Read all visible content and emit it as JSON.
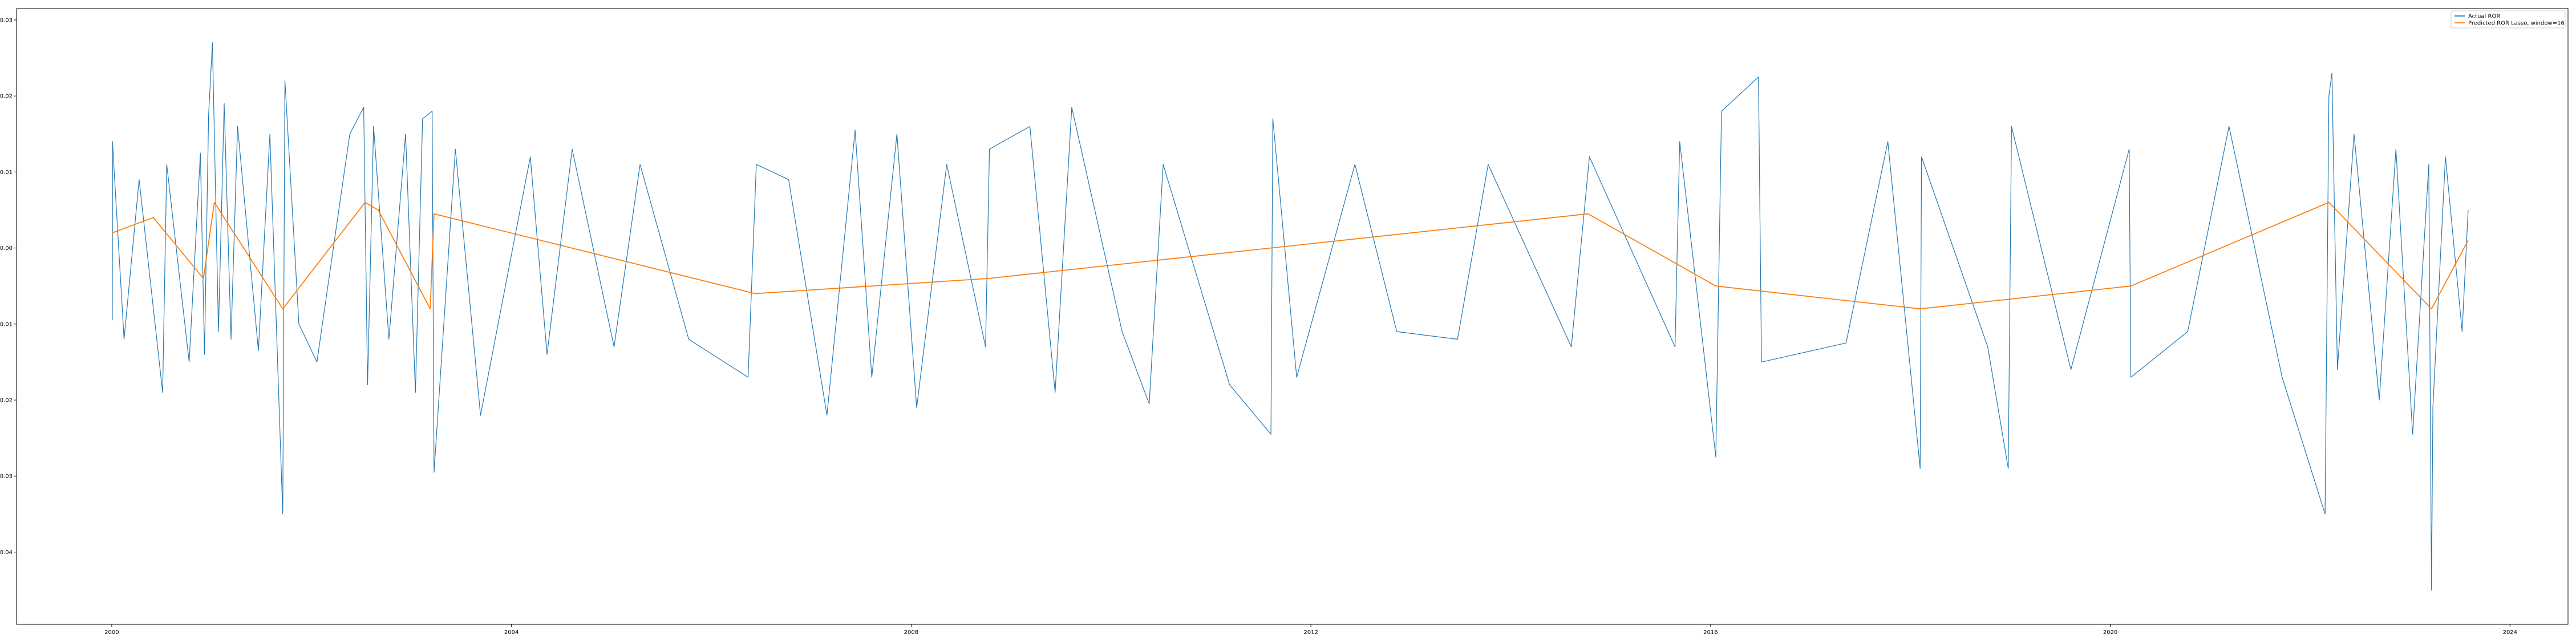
{
  "chart_data": {
    "type": "line",
    "title": "",
    "xlabel": "",
    "ylabel": "",
    "x_range": [
      "1999-01-18",
      "2024-07-31"
    ],
    "ylim": [
      -0.0495,
      0.0315
    ],
    "x_ticks": [
      {
        "date": "2000-01-01",
        "label": "2000"
      },
      {
        "date": "2004-01-01",
        "label": "2004"
      },
      {
        "date": "2008-01-01",
        "label": "2008"
      },
      {
        "date": "2012-01-01",
        "label": "2012"
      },
      {
        "date": "2016-01-01",
        "label": "2016"
      },
      {
        "date": "2020-01-01",
        "label": "2020"
      },
      {
        "date": "2024-01-01",
        "label": "2024"
      }
    ],
    "y_ticks": [
      {
        "value": 0.03,
        "label": "0.03"
      },
      {
        "value": 0.02,
        "label": "0.02"
      },
      {
        "value": 0.01,
        "label": "0.01"
      },
      {
        "value": 0.0,
        "label": "0.00"
      },
      {
        "value": -0.01,
        "label": "-0.01"
      },
      {
        "value": -0.02,
        "label": "-0.02"
      },
      {
        "value": -0.03,
        "label": "-0.03"
      },
      {
        "value": -0.04,
        "label": "-0.04"
      }
    ],
    "grid": false,
    "legend_position": "top-right",
    "series": [
      {
        "name": "Actual ROR",
        "color": "#1f77b4",
        "values": [
          {
            "x": "2000-01-03",
            "y": -0.0095
          },
          {
            "x": "2000-01-04",
            "y": 0.014
          },
          {
            "x": "2000-01-10",
            "y": 0.01
          },
          {
            "x": "2000-02-15",
            "y": -0.012
          },
          {
            "x": "2000-04-10",
            "y": 0.009
          },
          {
            "x": "2000-07-05",
            "y": -0.019
          },
          {
            "x": "2000-07-20",
            "y": 0.011
          },
          {
            "x": "2000-10-10",
            "y": -0.015
          },
          {
            "x": "2000-11-20",
            "y": 0.0125
          },
          {
            "x": "2000-12-05",
            "y": -0.014
          },
          {
            "x": "2000-12-20",
            "y": 0.0175
          },
          {
            "x": "2001-01-03",
            "y": 0.027
          },
          {
            "x": "2001-01-25",
            "y": -0.011
          },
          {
            "x": "2001-02-15",
            "y": 0.019
          },
          {
            "x": "2001-03-12",
            "y": -0.012
          },
          {
            "x": "2001-04-05",
            "y": 0.016
          },
          {
            "x": "2001-06-20",
            "y": -0.0135
          },
          {
            "x": "2001-08-01",
            "y": 0.015
          },
          {
            "x": "2001-09-17",
            "y": -0.035
          },
          {
            "x": "2001-09-25",
            "y": 0.022
          },
          {
            "x": "2001-11-15",
            "y": -0.01
          },
          {
            "x": "2002-01-20",
            "y": -0.015
          },
          {
            "x": "2002-05-20",
            "y": 0.015
          },
          {
            "x": "2002-07-10",
            "y": 0.0185
          },
          {
            "x": "2002-07-24",
            "y": -0.018
          },
          {
            "x": "2002-08-15",
            "y": 0.016
          },
          {
            "x": "2002-10-10",
            "y": -0.012
          },
          {
            "x": "2002-12-10",
            "y": 0.015
          },
          {
            "x": "2003-01-15",
            "y": -0.019
          },
          {
            "x": "2003-02-10",
            "y": 0.017
          },
          {
            "x": "2003-03-17",
            "y": 0.018
          },
          {
            "x": "2003-03-24",
            "y": -0.0295
          },
          {
            "x": "2003-06-10",
            "y": 0.013
          },
          {
            "x": "2003-09-10",
            "y": -0.022
          },
          {
            "x": "2004-03-10",
            "y": 0.012
          },
          {
            "x": "2004-05-10",
            "y": -0.014
          },
          {
            "x": "2004-08-10",
            "y": 0.013
          },
          {
            "x": "2005-01-10",
            "y": -0.013
          },
          {
            "x": "2005-04-15",
            "y": 0.011
          },
          {
            "x": "2005-10-10",
            "y": -0.012
          },
          {
            "x": "2006-05-15",
            "y": -0.017
          },
          {
            "x": "2006-06-14",
            "y": 0.011
          },
          {
            "x": "2006-10-10",
            "y": 0.009
          },
          {
            "x": "2007-02-27",
            "y": -0.022
          },
          {
            "x": "2007-06-10",
            "y": 0.0155
          },
          {
            "x": "2007-08-10",
            "y": -0.017
          },
          {
            "x": "2007-11-10",
            "y": 0.015
          },
          {
            "x": "2008-01-21",
            "y": -0.021
          },
          {
            "x": "2008-05-10",
            "y": 0.011
          },
          {
            "x": "2008-09-29",
            "y": -0.013
          },
          {
            "x": "2008-10-13",
            "y": 0.013
          },
          {
            "x": "2009-03-10",
            "y": 0.016
          },
          {
            "x": "2009-06-10",
            "y": -0.019
          },
          {
            "x": "2009-08-10",
            "y": 0.0185
          },
          {
            "x": "2010-02-10",
            "y": -0.011
          },
          {
            "x": "2010-05-20",
            "y": -0.0205
          },
          {
            "x": "2010-07-10",
            "y": 0.011
          },
          {
            "x": "2011-03-10",
            "y": -0.018
          },
          {
            "x": "2011-08-08",
            "y": -0.0245
          },
          {
            "x": "2011-08-15",
            "y": 0.017
          },
          {
            "x": "2011-11-10",
            "y": -0.017
          },
          {
            "x": "2012-06-10",
            "y": 0.011
          },
          {
            "x": "2012-11-10",
            "y": -0.011
          },
          {
            "x": "2013-06-20",
            "y": -0.012
          },
          {
            "x": "2013-10-10",
            "y": 0.011
          },
          {
            "x": "2014-08-10",
            "y": -0.013
          },
          {
            "x": "2014-10-15",
            "y": 0.012
          },
          {
            "x": "2015-08-24",
            "y": -0.013
          },
          {
            "x": "2015-09-10",
            "y": 0.014
          },
          {
            "x": "2016-01-20",
            "y": -0.0275
          },
          {
            "x": "2016-02-10",
            "y": 0.018
          },
          {
            "x": "2016-06-24",
            "y": 0.0225
          },
          {
            "x": "2016-07-05",
            "y": -0.015
          },
          {
            "x": "2017-05-10",
            "y": -0.0125
          },
          {
            "x": "2017-10-10",
            "y": 0.014
          },
          {
            "x": "2018-02-05",
            "y": -0.029
          },
          {
            "x": "2018-02-10",
            "y": 0.012
          },
          {
            "x": "2018-10-10",
            "y": -0.013
          },
          {
            "x": "2018-12-24",
            "y": -0.029
          },
          {
            "x": "2019-01-05",
            "y": 0.016
          },
          {
            "x": "2019-08-10",
            "y": -0.016
          },
          {
            "x": "2020-03-10",
            "y": 0.013
          },
          {
            "x": "2020-03-16",
            "y": -0.017
          },
          {
            "x": "2020-10-10",
            "y": -0.011
          },
          {
            "x": "2021-03-10",
            "y": 0.016
          },
          {
            "x": "2021-09-20",
            "y": -0.017
          },
          {
            "x": "2022-02-24",
            "y": -0.035
          },
          {
            "x": "2022-03-10",
            "y": 0.02
          },
          {
            "x": "2022-03-21",
            "y": 0.023
          },
          {
            "x": "2022-04-10",
            "y": -0.016
          },
          {
            "x": "2022-06-10",
            "y": 0.015
          },
          {
            "x": "2022-09-10",
            "y": -0.02
          },
          {
            "x": "2022-11-10",
            "y": 0.013
          },
          {
            "x": "2023-01-10",
            "y": -0.0245
          },
          {
            "x": "2023-03-10",
            "y": 0.011
          },
          {
            "x": "2023-03-20",
            "y": -0.045
          },
          {
            "x": "2023-03-25",
            "y": -0.021
          },
          {
            "x": "2023-05-10",
            "y": 0.012
          },
          {
            "x": "2023-07-10",
            "y": -0.011
          },
          {
            "x": "2023-08-01",
            "y": 0.005
          }
        ]
      },
      {
        "name": "Predicted ROR Lasso, window=16",
        "color": "#ff7f0e",
        "values": [
          {
            "x": "2000-01-03",
            "y": 0.002
          },
          {
            "x": "2000-06-01",
            "y": 0.004
          },
          {
            "x": "2000-12-01",
            "y": -0.004
          },
          {
            "x": "2001-01-10",
            "y": 0.006
          },
          {
            "x": "2001-09-17",
            "y": -0.008
          },
          {
            "x": "2002-07-15",
            "y": 0.006
          },
          {
            "x": "2002-09-01",
            "y": 0.005
          },
          {
            "x": "2003-03-10",
            "y": -0.008
          },
          {
            "x": "2003-03-24",
            "y": 0.0045
          },
          {
            "x": "2006-06-10",
            "y": -0.006
          },
          {
            "x": "2008-10-10",
            "y": -0.004
          },
          {
            "x": "2014-10-10",
            "y": 0.0045
          },
          {
            "x": "2016-01-20",
            "y": -0.005
          },
          {
            "x": "2018-02-05",
            "y": -0.008
          },
          {
            "x": "2020-03-16",
            "y": -0.005
          },
          {
            "x": "2022-03-10",
            "y": 0.006
          },
          {
            "x": "2023-03-20",
            "y": -0.008
          },
          {
            "x": "2023-08-01",
            "y": 0.001
          }
        ]
      }
    ]
  }
}
